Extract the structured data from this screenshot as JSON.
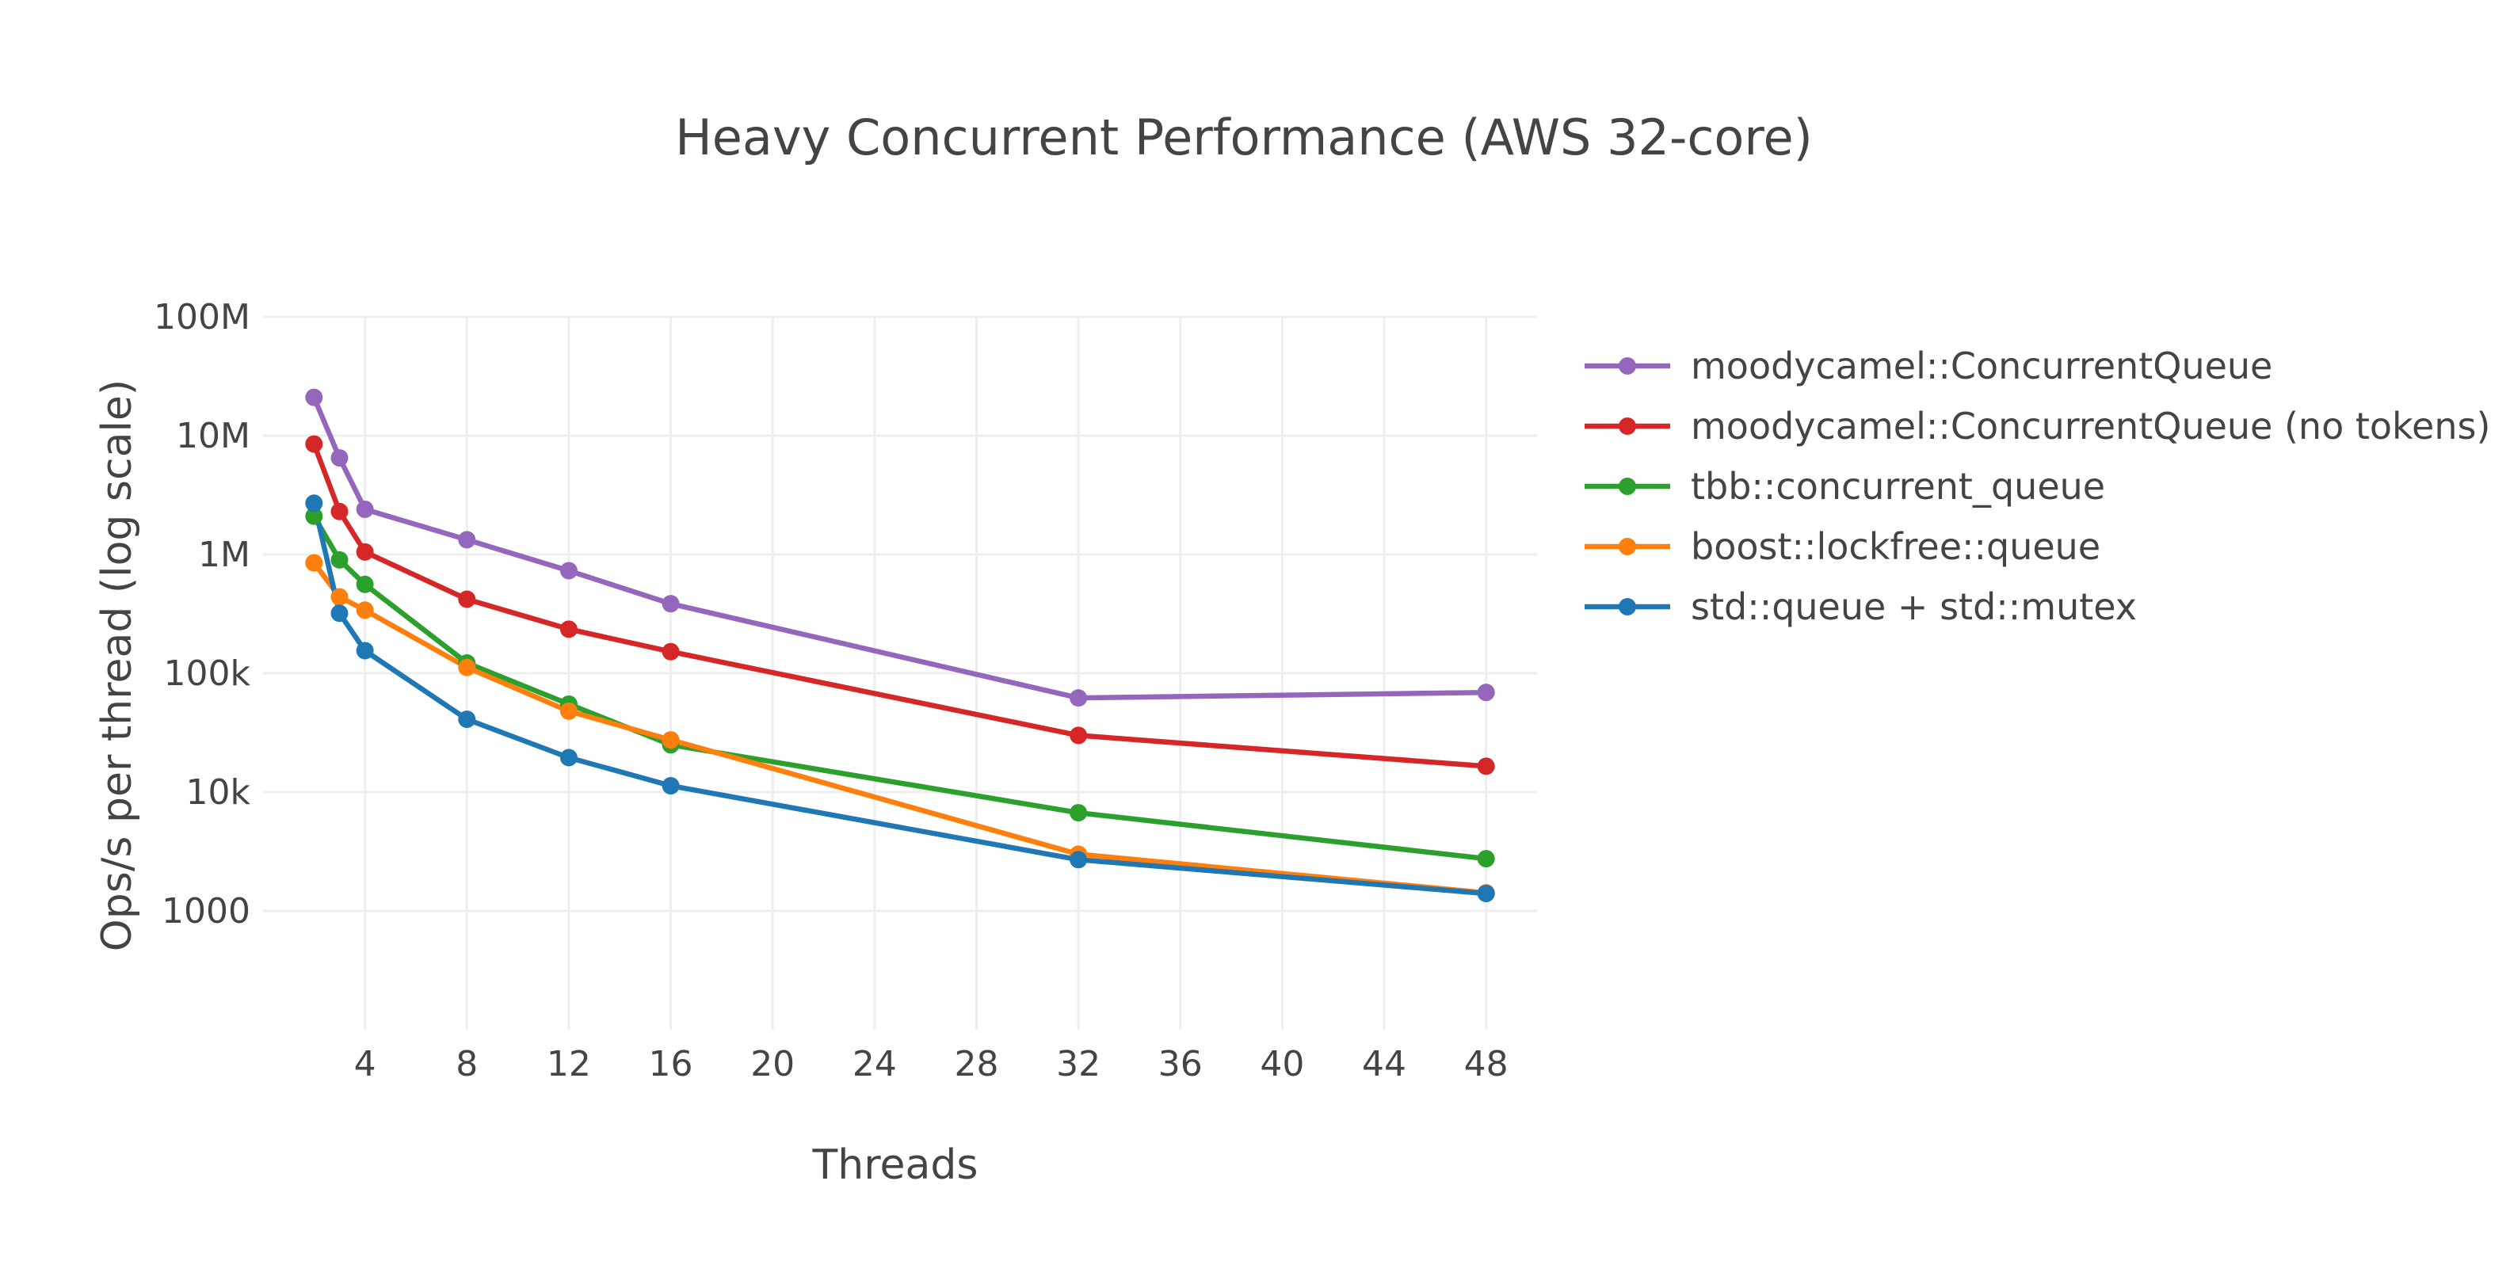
{
  "chart_data": {
    "type": "line",
    "title": "Heavy Concurrent Performance (AWS 32-core)",
    "xlabel": "Threads",
    "ylabel": "Ops/s per thread (log scale)",
    "xlim": [
      0,
      50
    ],
    "ylim": [
      100,
      100000000
    ],
    "y_scale": "log",
    "grid": true,
    "legend_position": "right",
    "x_ticks": [
      4,
      8,
      12,
      16,
      20,
      24,
      28,
      32,
      36,
      40,
      44,
      48
    ],
    "y_ticks": [
      {
        "value": 1000,
        "label": "1000"
      },
      {
        "value": 10000,
        "label": "10k"
      },
      {
        "value": 100000,
        "label": "100k"
      },
      {
        "value": 1000000,
        "label": "1M"
      },
      {
        "value": 10000000,
        "label": "10M"
      },
      {
        "value": 100000000,
        "label": "100M"
      }
    ],
    "series": [
      {
        "name": "moodycamel::ConcurrentQueue",
        "color": "#9467bd",
        "x": [
          2,
          3,
          4,
          8,
          12,
          16,
          32,
          48
        ],
        "y": [
          21000000,
          6500000,
          2400000,
          1330000,
          730000,
          385000,
          62000,
          69000
        ]
      },
      {
        "name": "moodycamel::ConcurrentQueue (no tokens)",
        "color": "#d62728",
        "x": [
          2,
          3,
          4,
          8,
          12,
          16,
          32,
          48
        ],
        "y": [
          8500000,
          2300000,
          1050000,
          420000,
          235000,
          152000,
          30000,
          16500
        ]
      },
      {
        "name": "tbb::concurrent_queue",
        "color": "#2ca02c",
        "x": [
          2,
          3,
          4,
          8,
          12,
          16,
          32,
          48
        ],
        "y": [
          2100000,
          900000,
          560000,
          122000,
          55000,
          25000,
          6700,
          2750
        ]
      },
      {
        "name": "boost::lockfree::queue",
        "color": "#ff7f0e",
        "x": [
          2,
          3,
          4,
          8,
          12,
          16,
          32,
          48
        ],
        "y": [
          850000,
          440000,
          340000,
          112000,
          48000,
          27500,
          3000,
          1420
        ]
      },
      {
        "name": "std::queue + std::mutex",
        "color": "#1f77b4",
        "x": [
          2,
          3,
          4,
          8,
          12,
          16,
          32,
          48
        ],
        "y": [
          2700000,
          320000,
          155000,
          41000,
          19500,
          11300,
          2700,
          1400
        ]
      }
    ]
  }
}
